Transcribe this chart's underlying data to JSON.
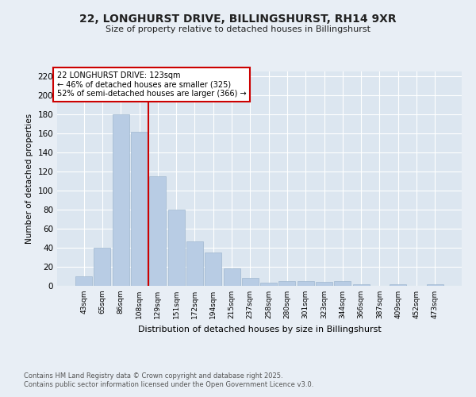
{
  "title_line1": "22, LONGHURST DRIVE, BILLINGSHURST, RH14 9XR",
  "title_line2": "Size of property relative to detached houses in Billingshurst",
  "xlabel": "Distribution of detached houses by size in Billingshurst",
  "ylabel": "Number of detached properties",
  "categories": [
    "43sqm",
    "65sqm",
    "86sqm",
    "108sqm",
    "129sqm",
    "151sqm",
    "172sqm",
    "194sqm",
    "215sqm",
    "237sqm",
    "258sqm",
    "280sqm",
    "301sqm",
    "323sqm",
    "344sqm",
    "366sqm",
    "387sqm",
    "409sqm",
    "452sqm",
    "473sqm"
  ],
  "values": [
    10,
    40,
    180,
    162,
    115,
    80,
    47,
    35,
    18,
    8,
    3,
    5,
    5,
    4,
    5,
    2,
    0,
    2,
    0,
    2
  ],
  "bar_color": "#b8cce4",
  "bar_edgecolor": "#a0b8d0",
  "vline_x": 3.5,
  "vline_color": "#cc0000",
  "annotation_title": "22 LONGHURST DRIVE: 123sqm",
  "annotation_line2": "← 46% of detached houses are smaller (325)",
  "annotation_line3": "52% of semi-detached houses are larger (366) →",
  "annotation_box_edgecolor": "#cc0000",
  "annotation_box_facecolor": "#ffffff",
  "ylim": [
    0,
    225
  ],
  "yticks": [
    0,
    20,
    40,
    60,
    80,
    100,
    120,
    140,
    160,
    180,
    200,
    220
  ],
  "plot_bg_color": "#dce6f0",
  "fig_bg_color": "#e8eef5",
  "footer_line1": "Contains HM Land Registry data © Crown copyright and database right 2025.",
  "footer_line2": "Contains public sector information licensed under the Open Government Licence v3.0."
}
